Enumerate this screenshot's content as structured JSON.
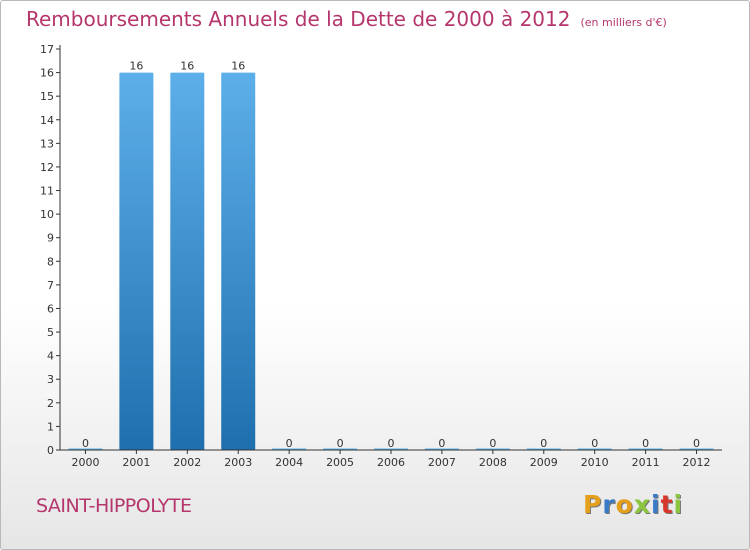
{
  "title": "Remboursements Annuels de la Dette de 2000 à 2012",
  "unit": "(en milliers d'€)",
  "commune": "SAINT-HIPPOLYTE",
  "logo": {
    "letters": [
      "P",
      "r",
      "o",
      "x",
      "i",
      "t",
      "i"
    ],
    "colors": [
      "#e5a01b",
      "#3a7bc8",
      "#e5a01b",
      "#8cc63f",
      "#3a7bc8",
      "#d9362b",
      "#8cc63f"
    ]
  },
  "colors": {
    "title": "#b5366c",
    "bar_top": "#5dafe9",
    "bar_bottom": "#1f6fae",
    "axis": "#333333"
  },
  "chart_data": {
    "type": "bar",
    "categories": [
      "2000",
      "2001",
      "2002",
      "2003",
      "2004",
      "2005",
      "2006",
      "2007",
      "2008",
      "2009",
      "2010",
      "2011",
      "2012"
    ],
    "values": [
      0,
      16,
      16,
      16,
      0,
      0,
      0,
      0,
      0,
      0,
      0,
      0,
      0
    ],
    "data_labels": [
      "0",
      "16",
      "16",
      "16",
      "0",
      "0",
      "0",
      "0",
      "0",
      "0",
      "0",
      "0",
      "0"
    ],
    "yticks": [
      "0",
      "1",
      "2",
      "3",
      "4",
      "5",
      "6",
      "7",
      "8",
      "9",
      "10",
      "11",
      "12",
      "13",
      "14",
      "15",
      "16",
      "17"
    ],
    "ylim": [
      0,
      17
    ],
    "title": "Remboursements Annuels de la Dette de 2000 à 2012",
    "xlabel": "",
    "ylabel": "",
    "grid": false
  }
}
